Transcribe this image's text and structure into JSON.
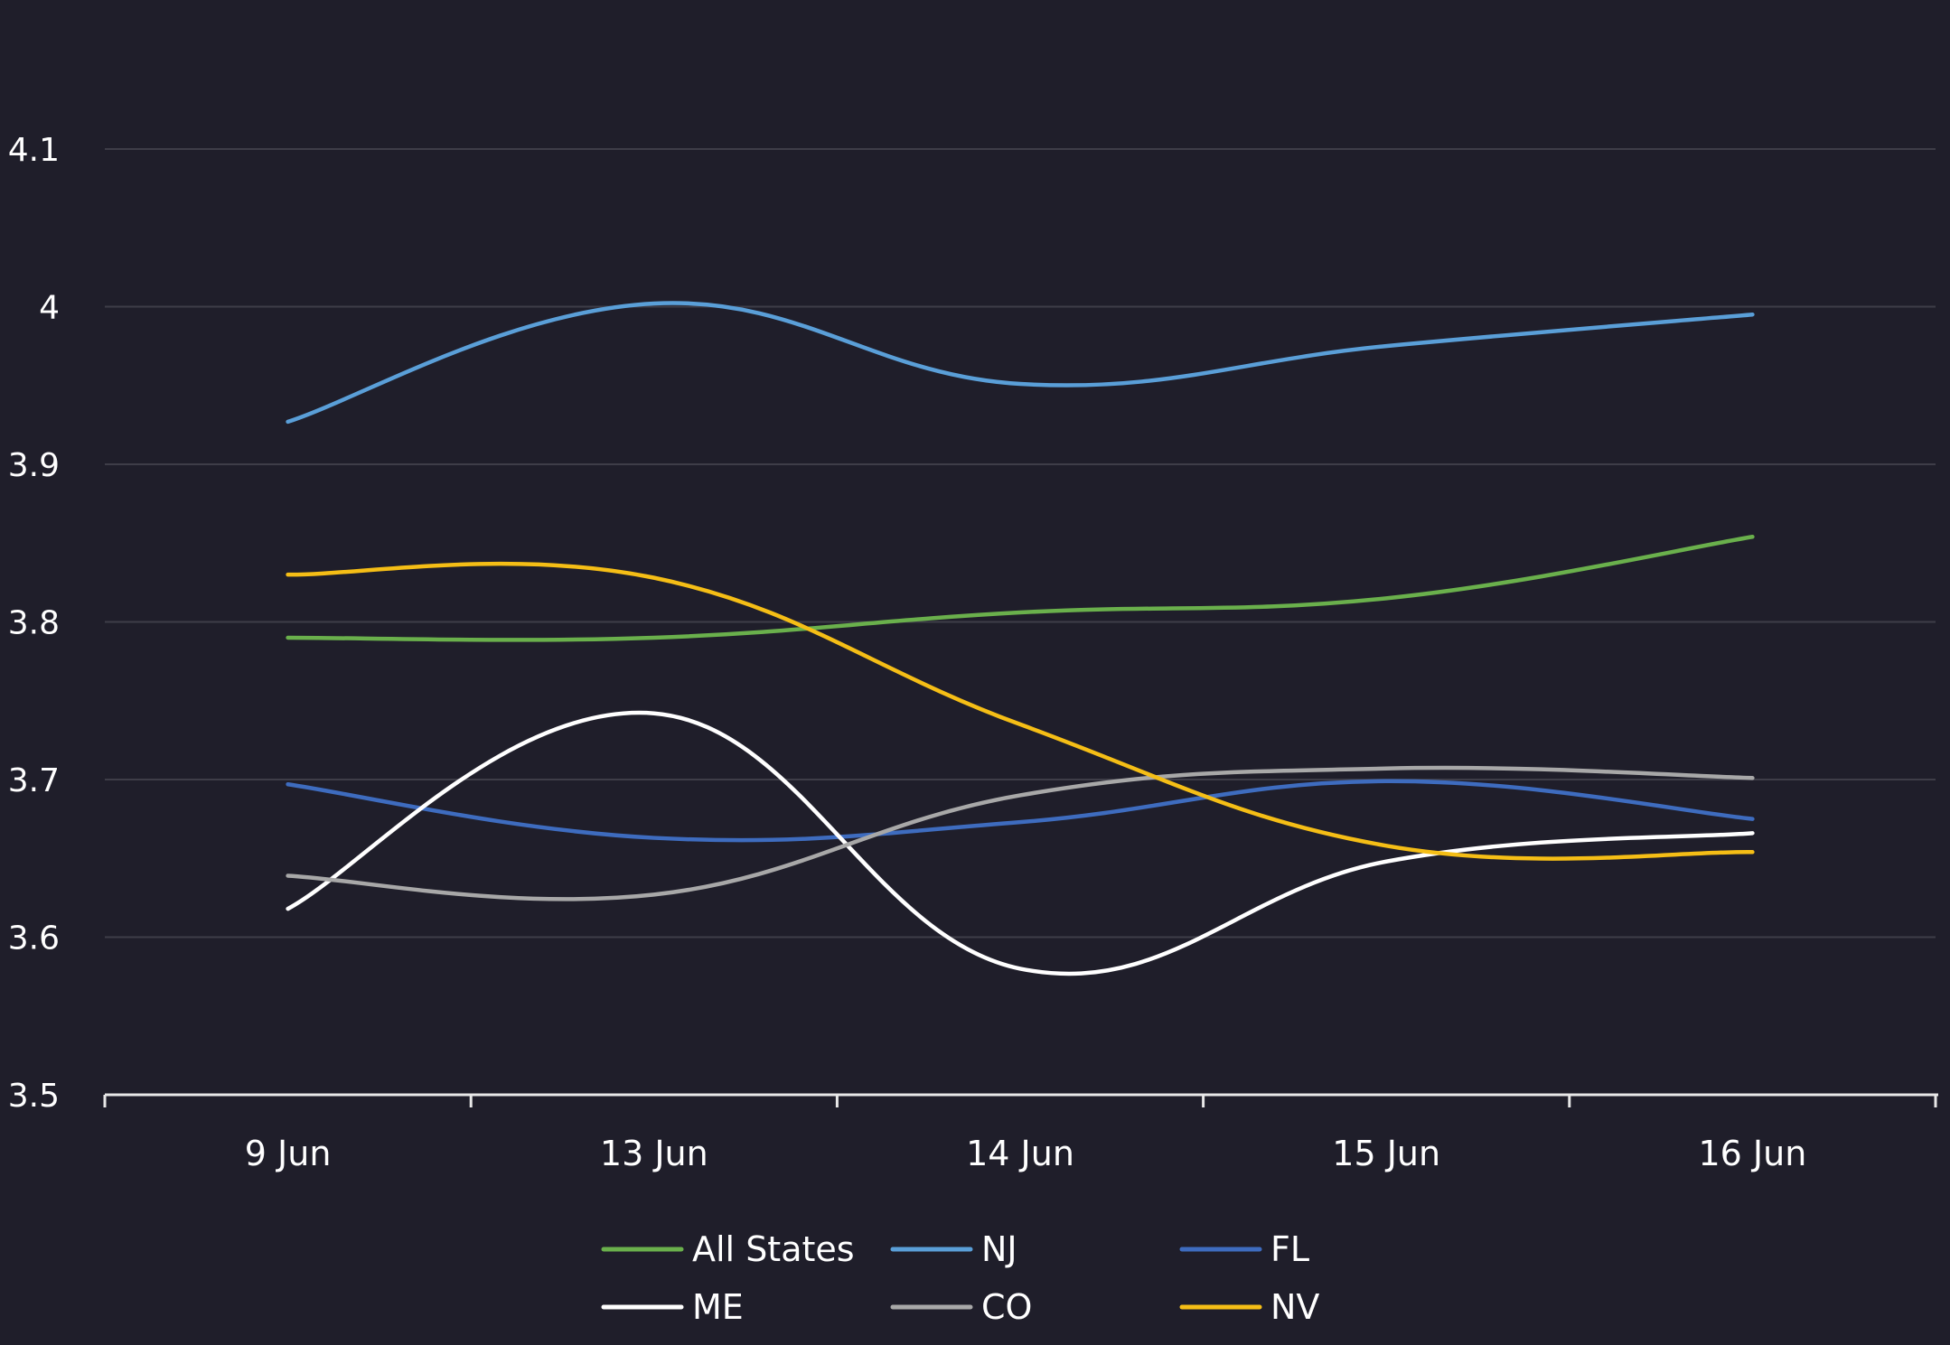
{
  "chart_data": {
    "type": "line",
    "categories": [
      "9 Jun",
      "13 Jun",
      "14 Jun",
      "15 Jun",
      "16 Jun"
    ],
    "ylim": [
      3.5,
      4.15
    ],
    "yticks": [
      "3.5",
      "3.6",
      "3.7",
      "3.8",
      "3.9",
      "4",
      "4.1"
    ],
    "grid": true,
    "legend_position": "bottom-center",
    "smooth": true,
    "series": [
      {
        "name": "All States",
        "color": "#6ab04c",
        "values": [
          3.79,
          3.79,
          3.806,
          3.815,
          3.854
        ]
      },
      {
        "name": "NJ",
        "color": "#5a9fd8",
        "values": [
          3.927,
          4.002,
          3.951,
          3.975,
          3.995
        ]
      },
      {
        "name": "FL",
        "color": "#3e6cbf",
        "values": [
          3.697,
          3.663,
          3.673,
          3.699,
          3.675
        ]
      },
      {
        "name": "ME",
        "color": "#ffffff",
        "values": [
          3.618,
          3.742,
          3.58,
          3.648,
          3.666
        ]
      },
      {
        "name": "CO",
        "color": "#a8a8a8",
        "values": [
          3.639,
          3.627,
          3.69,
          3.707,
          3.701
        ]
      },
      {
        "name": "NV",
        "color": "#f5be16",
        "values": [
          3.83,
          3.828,
          3.735,
          3.658,
          3.654
        ]
      }
    ]
  }
}
